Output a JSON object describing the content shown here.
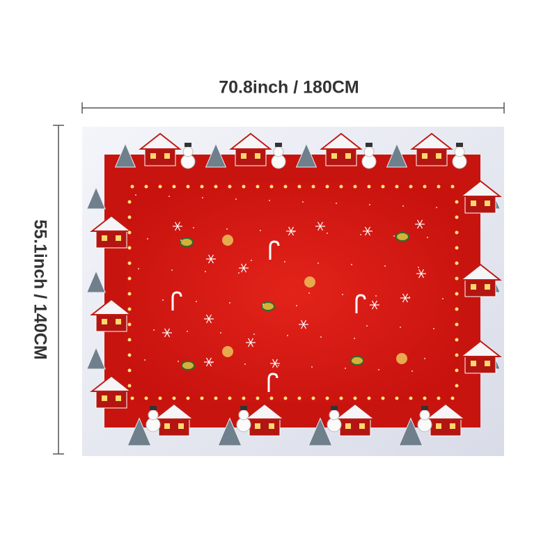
{
  "dimensions": {
    "width_label": "70.8inch / 180CM",
    "height_label": "55.1inch / 140CM"
  }
}
